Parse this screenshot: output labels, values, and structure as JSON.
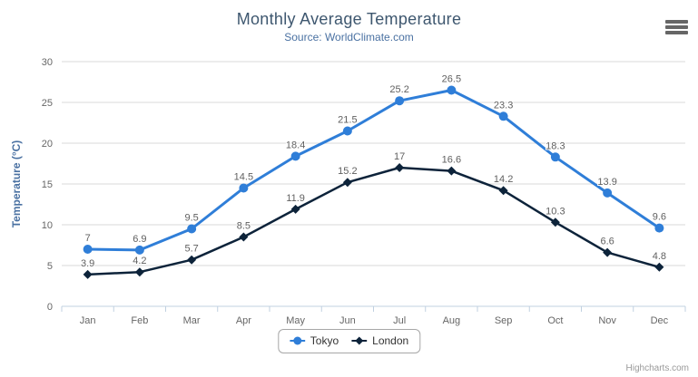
{
  "chart_data": {
    "type": "line",
    "title": "Monthly Average Temperature",
    "subtitle": "Source: WorldClimate.com",
    "xlabel": "",
    "ylabel": "Temperature (°C)",
    "ylim": [
      0,
      30
    ],
    "ytick_interval": 5,
    "grid": true,
    "legend_position": "bottom-center",
    "categories": [
      "Jan",
      "Feb",
      "Mar",
      "Apr",
      "May",
      "Jun",
      "Jul",
      "Aug",
      "Sep",
      "Oct",
      "Nov",
      "Dec"
    ],
    "series": [
      {
        "name": "Tokyo",
        "color": "#2f7ed8",
        "marker": "circle",
        "line_width": 3,
        "values": [
          7,
          6.9,
          9.5,
          14.5,
          18.4,
          21.5,
          25.2,
          26.5,
          23.3,
          18.3,
          13.9,
          9.6
        ]
      },
      {
        "name": "London",
        "color": "#0d233a",
        "marker": "diamond",
        "line_width": 2.5,
        "values": [
          3.9,
          4.2,
          5.7,
          8.5,
          11.9,
          15.2,
          17,
          16.6,
          14.2,
          10.3,
          6.6,
          4.8
        ]
      }
    ]
  },
  "colors": {
    "grid_line": "#d8d8d8",
    "x_axis_line": "#c0d0e0",
    "axis_label": "#666666",
    "data_label": "#606060",
    "title": "#3e576f",
    "subtitle": "#4a71a2",
    "legend_border": "#a7a7a7",
    "credit": "#999999",
    "menu_icon": "#666666"
  },
  "icons": {
    "menu": "hamburger-menu-icon"
  },
  "credit_label": "Highcharts.com"
}
